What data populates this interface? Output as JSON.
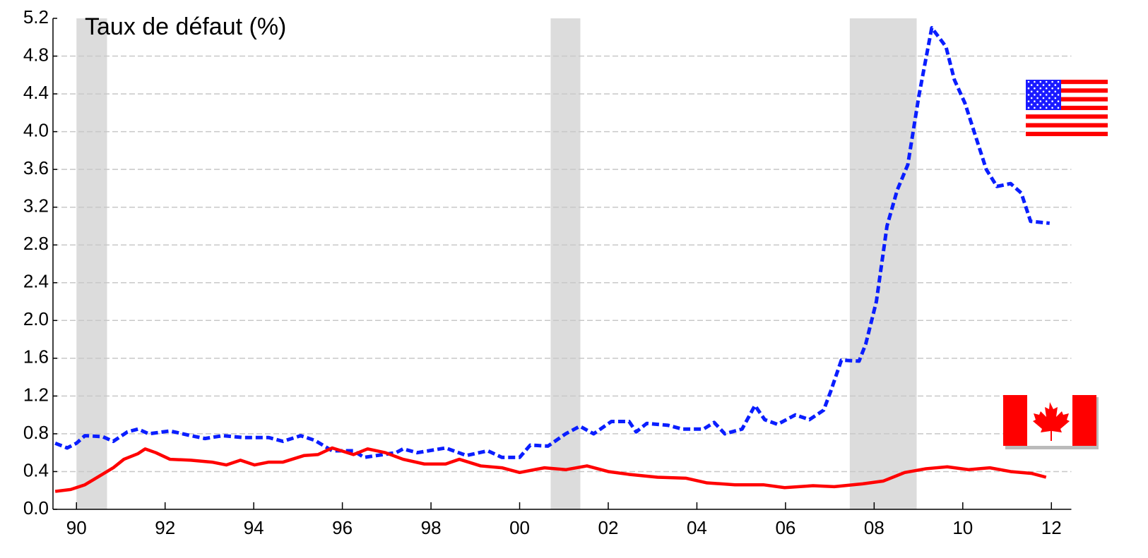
{
  "chart_data": {
    "type": "line",
    "title": "Taux de défaut (%)",
    "xlim": [
      1989.47,
      2012.45
    ],
    "xticks": [
      {
        "value": 1990,
        "label": "90"
      },
      {
        "value": 1992,
        "label": "92"
      },
      {
        "value": 1994,
        "label": "94"
      },
      {
        "value": 1996,
        "label": "96"
      },
      {
        "value": 1998,
        "label": "98"
      },
      {
        "value": 2000,
        "label": "00"
      },
      {
        "value": 2002,
        "label": "02"
      },
      {
        "value": 2004,
        "label": "04"
      },
      {
        "value": 2006,
        "label": "06"
      },
      {
        "value": 2008,
        "label": "08"
      },
      {
        "value": 2010,
        "label": "10"
      },
      {
        "value": 2012,
        "label": "12"
      }
    ],
    "ylim": [
      0,
      5.2
    ],
    "yticks": [
      {
        "value": 0,
        "label": "0.0"
      },
      0.4,
      0.8,
      1.2,
      1.6,
      {
        "value": 2,
        "label": "2.0"
      },
      2.4,
      2.8,
      3.2,
      3.6,
      {
        "value": 4,
        "label": "4.0"
      },
      4.4,
      4.8,
      5.2
    ],
    "grid": true,
    "shaded_periods": [
      [
        1990.0,
        1990.69
      ],
      [
        2000.7,
        2001.37
      ],
      [
        2007.45,
        2008.96
      ]
    ],
    "shade_color": "#dcdcdc",
    "series": [
      {
        "color": "#0a1eff",
        "dashed": true,
        "x": [
          1989.52,
          1989.79,
          1990.0,
          1990.19,
          1990.59,
          1990.83,
          1991.15,
          1991.39,
          1991.63,
          1992.11,
          1992.58,
          1992.9,
          1993.3,
          1993.78,
          1994.34,
          1994.66,
          1995.06,
          1995.38,
          1995.77,
          1996.25,
          1996.49,
          1997.21,
          1997.37,
          1997.69,
          1998.33,
          1998.8,
          1999.28,
          1999.6,
          2000.0,
          2000.24,
          2000.64,
          2001.04,
          2001.36,
          2001.67,
          2002.07,
          2002.47,
          2002.63,
          2002.87,
          2003.35,
          2003.67,
          2004.15,
          2004.39,
          2004.63,
          2005.02,
          2005.31,
          2005.53,
          2005.82,
          2006.22,
          2006.54,
          2006.86,
          2007.02,
          2007.26,
          2007.66,
          2007.81,
          2008.05,
          2008.29,
          2008.52,
          2008.76,
          2009.01,
          2009.3,
          2009.62,
          2009.81,
          2010.05,
          2010.29,
          2010.53,
          2010.77,
          2011.08,
          2011.32,
          2011.53,
          2011.96
        ],
        "values": [
          0.7,
          0.65,
          0.7,
          0.78,
          0.77,
          0.72,
          0.82,
          0.85,
          0.8,
          0.83,
          0.78,
          0.75,
          0.78,
          0.76,
          0.76,
          0.72,
          0.78,
          0.73,
          0.62,
          0.62,
          0.55,
          0.6,
          0.64,
          0.6,
          0.65,
          0.57,
          0.62,
          0.55,
          0.55,
          0.68,
          0.67,
          0.8,
          0.88,
          0.8,
          0.93,
          0.93,
          0.82,
          0.91,
          0.89,
          0.85,
          0.85,
          0.92,
          0.8,
          0.85,
          1.1,
          0.95,
          0.9,
          1.0,
          0.95,
          1.05,
          1.25,
          1.58,
          1.57,
          1.75,
          2.2,
          3.0,
          3.38,
          3.65,
          4.38,
          5.1,
          4.9,
          4.55,
          4.3,
          3.95,
          3.6,
          3.42,
          3.45,
          3.35,
          3.05,
          3.03
        ]
      },
      {
        "color": "#ff0000",
        "dashed": false,
        "x": [
          1989.52,
          1989.87,
          1990.19,
          1990.51,
          1990.83,
          1991.07,
          1991.39,
          1991.55,
          1991.79,
          1992.11,
          1992.58,
          1993.06,
          1993.38,
          1993.7,
          1994.02,
          1994.34,
          1994.66,
          1995.14,
          1995.45,
          1995.77,
          1996.25,
          1996.57,
          1996.97,
          1997.37,
          1997.85,
          1998.33,
          1998.64,
          1999.12,
          1999.6,
          2000.0,
          2000.56,
          2001.04,
          2001.52,
          2002.0,
          2002.47,
          2003.11,
          2003.75,
          2004.23,
          2004.86,
          2005.5,
          2005.98,
          2006.62,
          2007.1,
          2007.74,
          2008.21,
          2008.69,
          2009.17,
          2009.65,
          2010.13,
          2010.61,
          2011.08,
          2011.56,
          2011.88
        ],
        "values": [
          0.19,
          0.21,
          0.26,
          0.35,
          0.44,
          0.53,
          0.59,
          0.64,
          0.6,
          0.53,
          0.52,
          0.5,
          0.47,
          0.52,
          0.47,
          0.5,
          0.5,
          0.57,
          0.58,
          0.65,
          0.58,
          0.64,
          0.6,
          0.53,
          0.48,
          0.48,
          0.53,
          0.46,
          0.44,
          0.39,
          0.44,
          0.42,
          0.46,
          0.4,
          0.37,
          0.34,
          0.33,
          0.28,
          0.26,
          0.26,
          0.23,
          0.25,
          0.24,
          0.27,
          0.3,
          0.39,
          0.43,
          0.45,
          0.42,
          0.44,
          0.4,
          0.38,
          0.34
        ]
      }
    ]
  }
}
